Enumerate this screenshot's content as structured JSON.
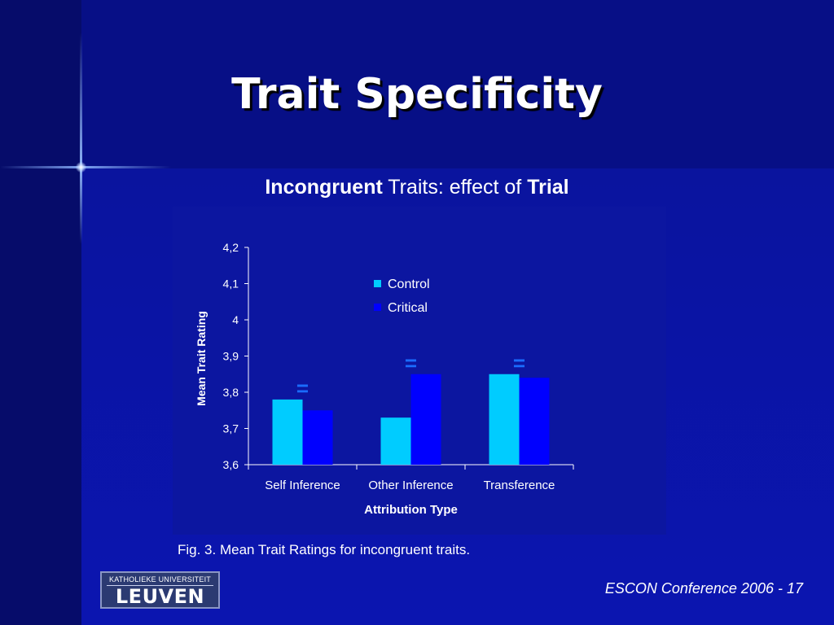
{
  "slide": {
    "title": "Trait Specificity",
    "subtitle_part1": "Incongruent",
    "subtitle_part2": " Traits: effect of ",
    "subtitle_part3": "Trial",
    "caption": "Fig. 3.  Mean Trait Ratings for incongruent traits.",
    "footer": "ESCON Conference 2006 - 17",
    "logo_top": "KATHOLIEKE UNIVERSITEIT",
    "logo_main": "LEUVEN"
  },
  "colors": {
    "control": "#00ccff",
    "critical": "#0000ff",
    "equals_marker": "#1a6cff",
    "axis": "#ffffff"
  },
  "chart_data": {
    "type": "bar",
    "categories": [
      "Self Inference",
      "Other Inference",
      "Transference"
    ],
    "series": [
      {
        "name": "Control",
        "values": [
          3.78,
          3.73,
          3.85
        ]
      },
      {
        "name": "Critical",
        "values": [
          3.75,
          3.85,
          3.84
        ]
      }
    ],
    "ylim": [
      3.6,
      4.2
    ],
    "yticks": [
      3.6,
      3.7,
      3.8,
      3.9,
      4.0,
      4.1,
      4.2
    ],
    "ytick_labels": [
      "3,6",
      "3,7",
      "3,8",
      "3,9",
      "4",
      "4,1",
      "4,2"
    ],
    "xlabel": "Attribution Type",
    "ylabel": "Mean Trait Rating",
    "legend_position": "top-center",
    "annotations": [
      "=",
      "=",
      "="
    ],
    "grid": false
  }
}
